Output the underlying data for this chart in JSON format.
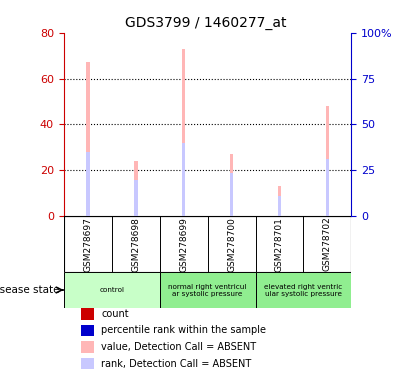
{
  "title": "GDS3799 / 1460277_at",
  "samples": [
    "GSM278697",
    "GSM278698",
    "GSM278699",
    "GSM278700",
    "GSM278701",
    "GSM278702"
  ],
  "value_absent": [
    67,
    24,
    73,
    27,
    13,
    48
  ],
  "rank_absent": [
    28,
    16,
    32,
    19,
    9,
    25
  ],
  "left_ylim": [
    0,
    80
  ],
  "right_ylim": [
    0,
    100
  ],
  "left_yticks": [
    0,
    20,
    40,
    60,
    80
  ],
  "right_yticks": [
    0,
    25,
    50,
    75,
    100
  ],
  "right_yticklabels": [
    "0",
    "25",
    "50",
    "75",
    "100%"
  ],
  "bar_color_value": "#ffb6b6",
  "bar_color_rank": "#c8c8ff",
  "dot_color_count": "#cc0000",
  "dot_color_rank": "#0000cc",
  "disease_groups": [
    {
      "label": "control",
      "span": [
        0,
        2
      ],
      "color": "#c8ffc8"
    },
    {
      "label": "normal right ventricul\nar systolic pressure",
      "span": [
        2,
        4
      ],
      "color": "#90ee90"
    },
    {
      "label": "elevated right ventric\nular systolic pressure",
      "span": [
        4,
        6
      ],
      "color": "#90ee90"
    }
  ],
  "legend_items": [
    {
      "color": "#cc0000",
      "label": "count"
    },
    {
      "color": "#0000cc",
      "label": "percentile rank within the sample"
    },
    {
      "color": "#ffb6b6",
      "label": "value, Detection Call = ABSENT"
    },
    {
      "color": "#c8c8ff",
      "label": "rank, Detection Call = ABSENT"
    }
  ],
  "disease_state_label": "disease state",
  "left_axis_color": "#cc0000",
  "right_axis_color": "#0000cc",
  "sample_label_bg": "#d3d3d3",
  "bar_width": 0.08
}
